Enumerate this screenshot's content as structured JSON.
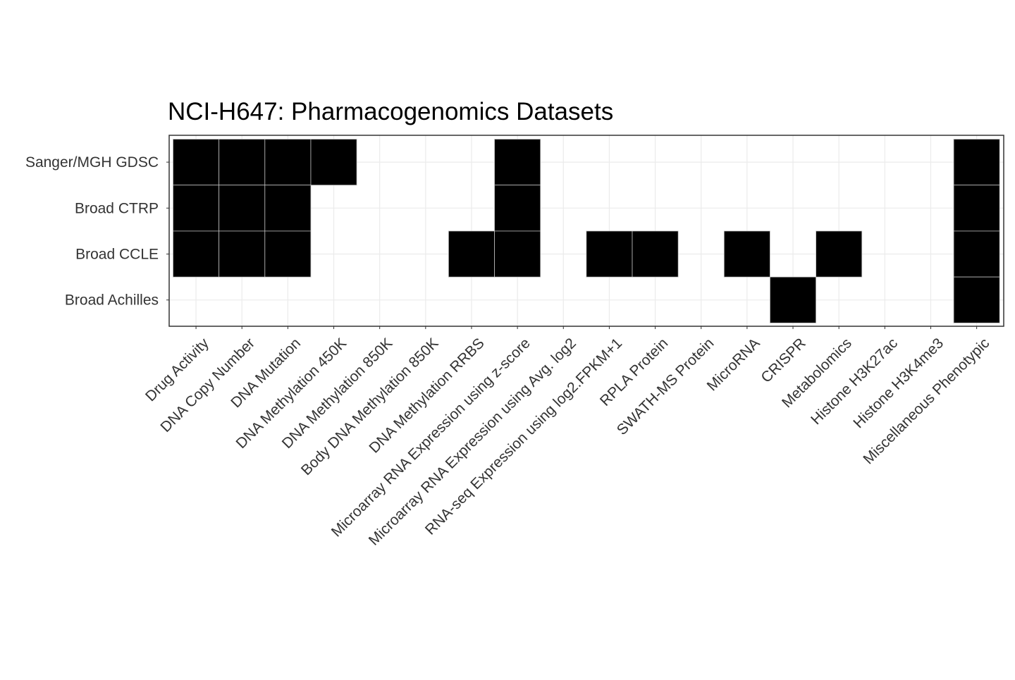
{
  "chart_data": {
    "type": "heatmap",
    "title": "NCI-H647: Pharmacogenomics Datasets",
    "xlabel": "",
    "ylabel": "",
    "grid": true,
    "legend": "none",
    "colors": {
      "filled": "#000000",
      "empty": "#ffffff",
      "cell_border": "#bdbdbd",
      "grid": "#ebebeb",
      "panel_border": "#333333"
    },
    "rows": [
      "Sanger/MGH GDSC",
      "Broad CTRP",
      "Broad CCLE",
      "Broad Achilles"
    ],
    "columns": [
      "Drug Activity",
      "DNA Copy Number",
      "DNA Mutation",
      "DNA Methylation 450K",
      "DNA Methylation 850K",
      "Body DNA Methylation 850K",
      "DNA Methylation RRBS",
      "Microarray RNA Expression using z-score",
      "Microarray RNA Expression using Avg. log2",
      "RNA-seq Expression using log2.FPKM+1",
      "RPLA Protein",
      "SWATH-MS Protein",
      "MicroRNA",
      "CRISPR",
      "Metabolomics",
      "Histone H3K27ac",
      "Histone H3K4me3",
      "Miscellaneous Phenotypic"
    ],
    "values": [
      [
        1,
        1,
        1,
        1,
        0,
        0,
        0,
        1,
        0,
        0,
        0,
        0,
        0,
        0,
        0,
        0,
        0,
        1
      ],
      [
        1,
        1,
        1,
        0,
        0,
        0,
        0,
        1,
        0,
        0,
        0,
        0,
        0,
        0,
        0,
        0,
        0,
        1
      ],
      [
        1,
        1,
        1,
        0,
        0,
        0,
        1,
        1,
        0,
        1,
        1,
        0,
        1,
        0,
        1,
        0,
        0,
        1
      ],
      [
        0,
        0,
        0,
        0,
        0,
        0,
        0,
        0,
        0,
        0,
        0,
        0,
        0,
        1,
        0,
        0,
        0,
        1
      ]
    ]
  }
}
